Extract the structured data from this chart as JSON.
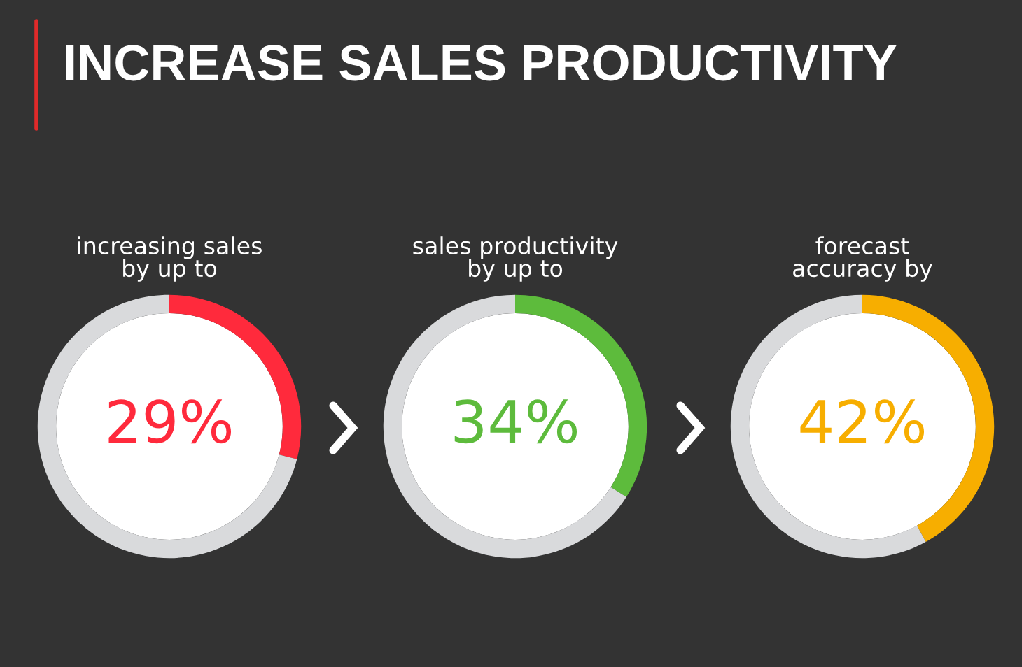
{
  "chart_data": [
    {
      "type": "donut",
      "title": "increasing sales\nby up to",
      "annotations": [
        "INCREASE SALES PRODUCTIVITY"
      ],
      "categories": [
        null,
        null
      ],
      "values": [
        29,
        71
      ],
      "colors": [
        "#ff2a3c",
        "#d9dadc"
      ],
      "value_labels": [
        "29%",
        null
      ]
    },
    {
      "type": "donut",
      "title": "sales productivity\nby up to",
      "categories": [
        null,
        null
      ],
      "values": [
        34,
        66
      ],
      "colors": [
        "#5dbb3c",
        "#d9dadc"
      ],
      "value_labels": [
        "34%",
        null
      ]
    },
    {
      "type": "donut",
      "title": "forecast\naccuracy by",
      "categories": [
        null,
        null
      ],
      "values": [
        42,
        58
      ],
      "colors": [
        "#f7ae00",
        "#d9dadc"
      ],
      "value_labels": [
        "42%",
        null
      ]
    }
  ]
}
